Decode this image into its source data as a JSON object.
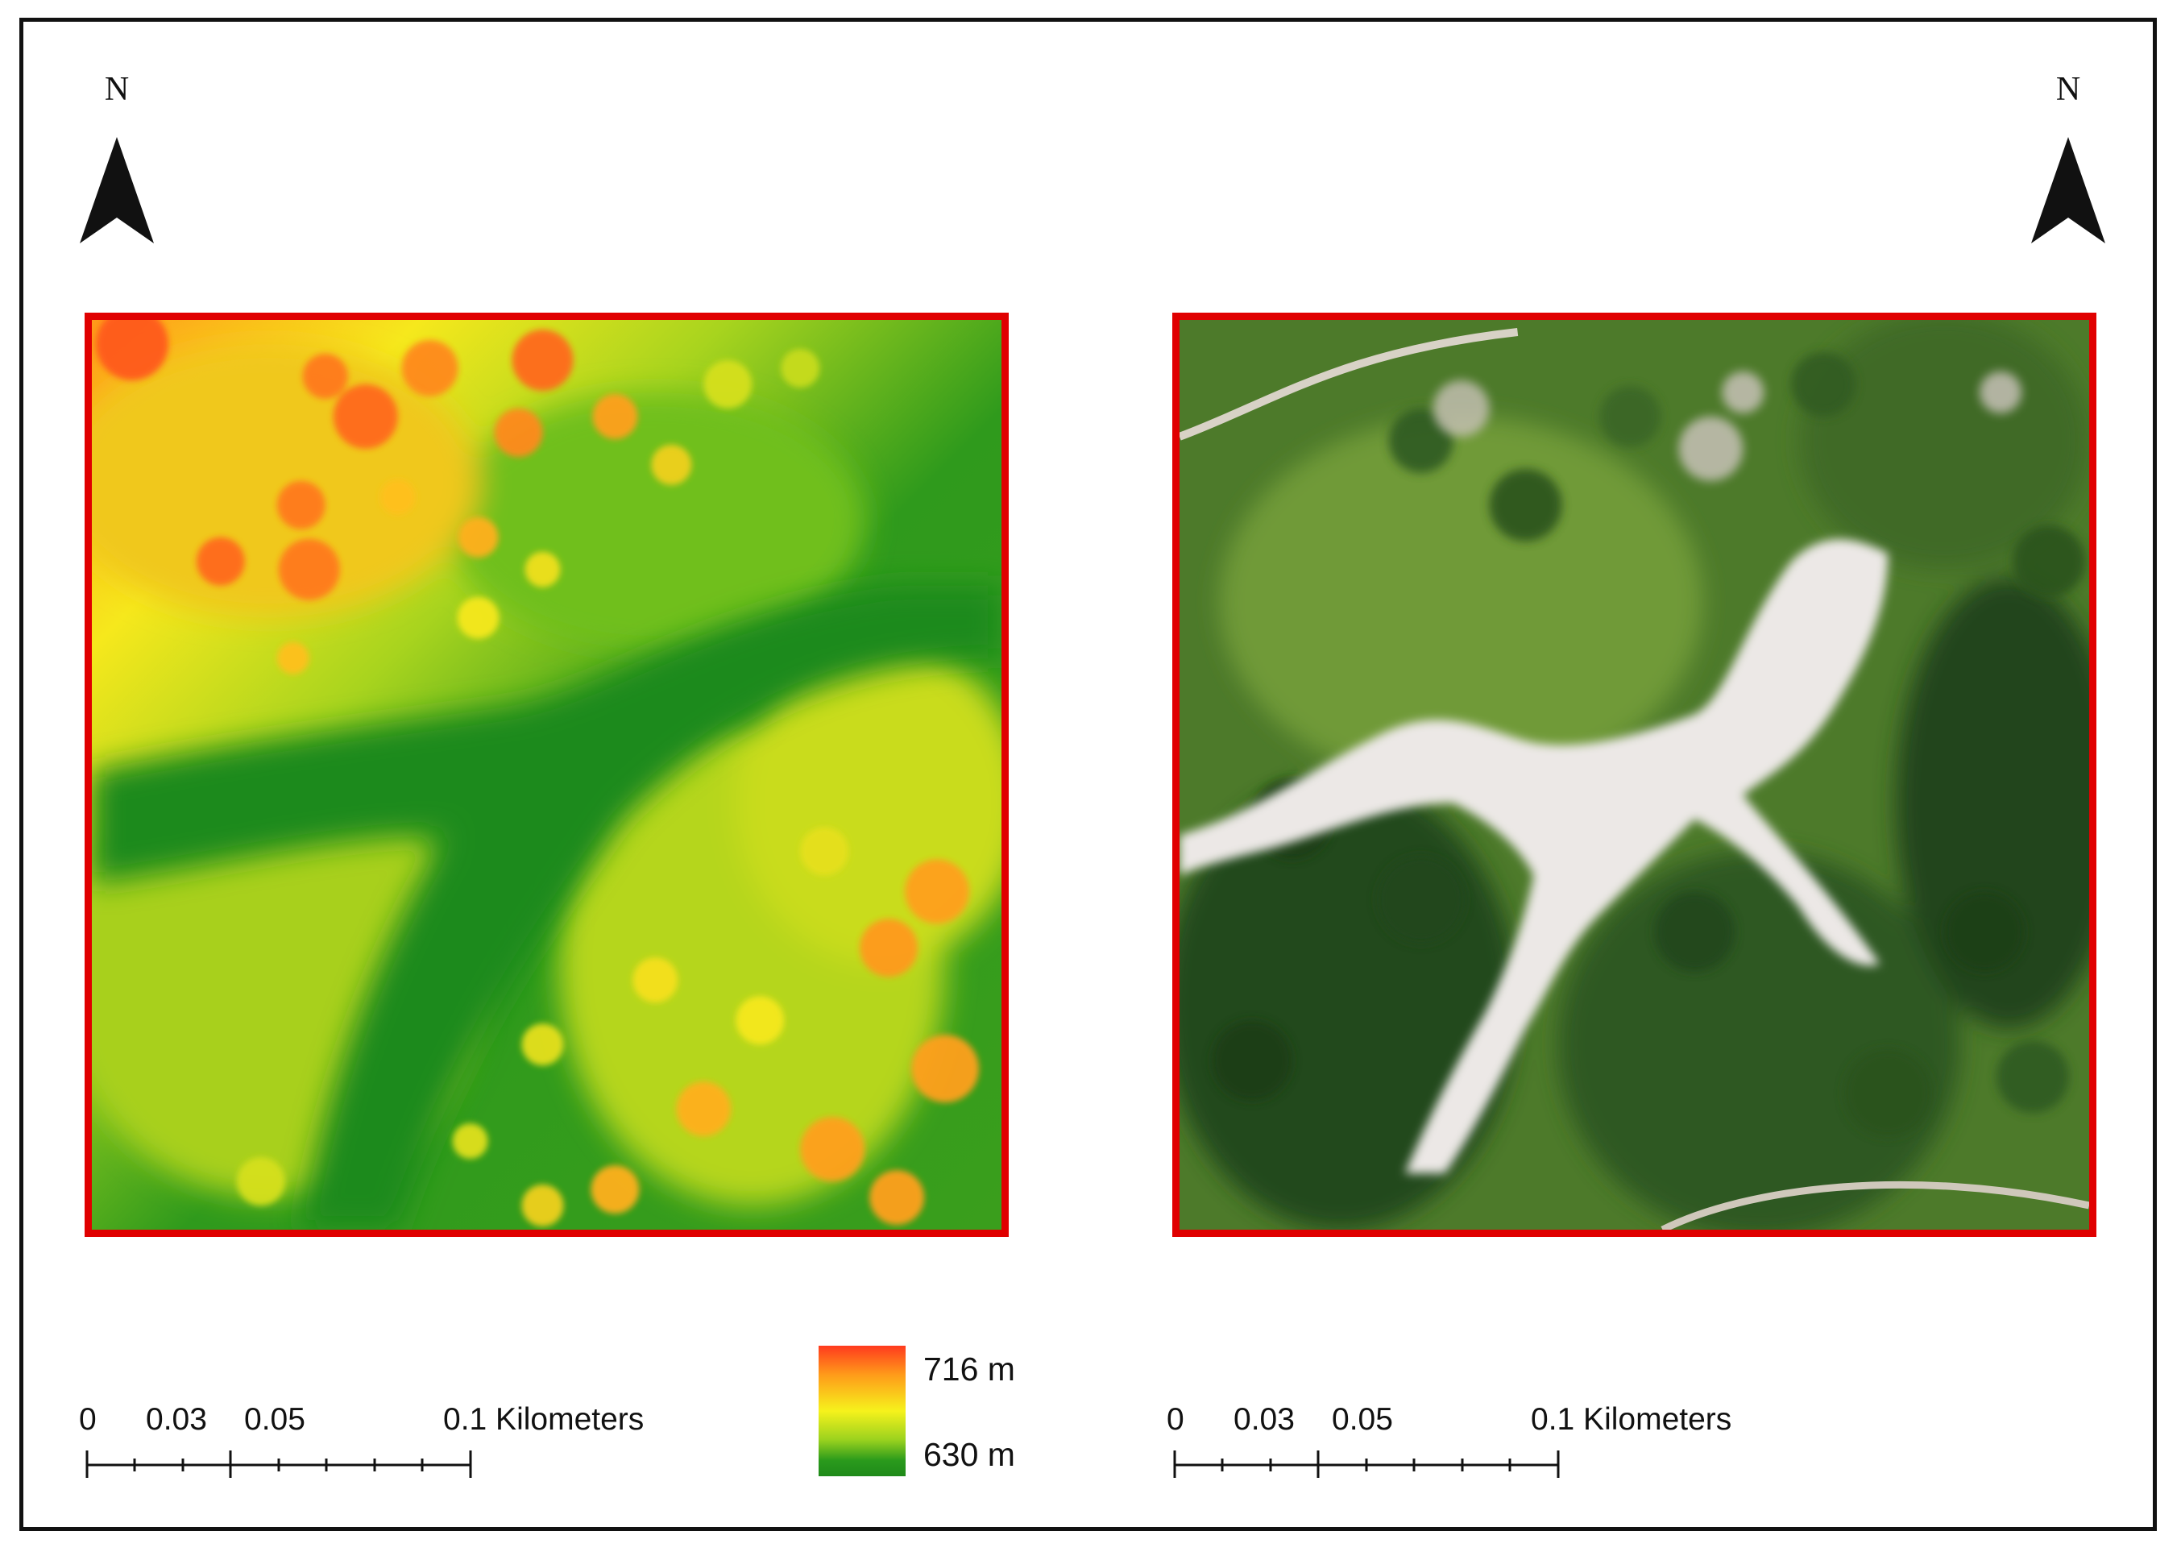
{
  "north_arrows": [
    {
      "letter": "N",
      "icon": "north-arrow-icon"
    },
    {
      "letter": "N",
      "icon": "north-arrow-icon"
    }
  ],
  "panels": {
    "left": {
      "type": "elevation-raster"
    },
    "right": {
      "type": "orthophoto"
    }
  },
  "colors": {
    "frame": "#111111",
    "panel_border": "#e00000",
    "ramp_high": "#ff3a1e",
    "ramp_mid": "#f6f21c",
    "ramp_low": "#1f8a1a"
  },
  "elevation_legend": {
    "max_label": "716 m",
    "min_label": "630 m"
  },
  "scale_bars": [
    {
      "labels": [
        "0",
        "0.03",
        "0.05",
        "0.1 Kilometers"
      ]
    },
    {
      "labels": [
        "0",
        "0.03",
        "0.05",
        "0.1 Kilometers"
      ]
    }
  ]
}
